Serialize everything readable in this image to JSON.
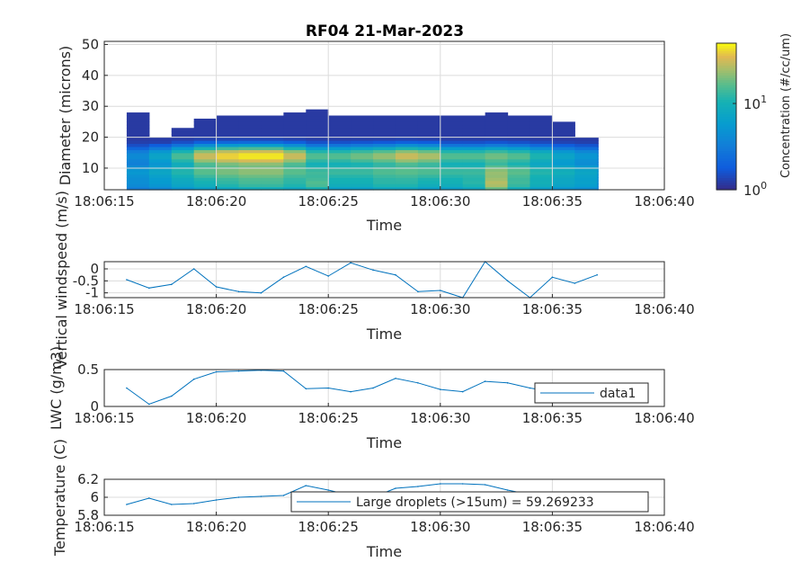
{
  "chart_data": [
    {
      "type": "heatmap",
      "title": "RF04 21-Mar-2023",
      "xlabel": "Time",
      "ylabel": "Diameter (microns)",
      "x_ticks": [
        "18:06:15",
        "18:06:20",
        "18:06:25",
        "18:06:30",
        "18:06:35",
        "18:06:40"
      ],
      "xlim_seconds": [
        15,
        40
      ],
      "ylim": [
        3,
        51
      ],
      "y_ticks": [
        10,
        20,
        30,
        40,
        50
      ],
      "grid": true,
      "colorbar": {
        "label": "Concentration (#/cc/um)",
        "scale": "log",
        "ticks": [
          "10^0",
          "10^1"
        ],
        "range": [
          1,
          50
        ],
        "colormap": "parula"
      },
      "x_seconds": [
        16,
        17,
        18,
        19,
        20,
        21,
        22,
        23,
        24,
        25,
        26,
        27,
        28,
        29,
        30,
        31,
        32,
        33,
        34,
        35,
        36,
        37
      ],
      "top_edge_microns": [
        28,
        20,
        23,
        26,
        26.5,
        27,
        27,
        27.5,
        28.5,
        27,
        26.5,
        26.5,
        26.5,
        26.5,
        26.5,
        27,
        28,
        27,
        27,
        25,
        20,
        20
      ],
      "bands": [
        {
          "y_center": 14,
          "peak_concentration_by_second": [
            3,
            6,
            14,
            30,
            40,
            45,
            45,
            30,
            15,
            15,
            18,
            22,
            30,
            25,
            15,
            15,
            18,
            15,
            10,
            6,
            4,
            3
          ]
        },
        {
          "y_center": 9,
          "peak_concentration_by_second": [
            4,
            6,
            10,
            15,
            18,
            20,
            20,
            15,
            12,
            12,
            12,
            14,
            15,
            14,
            12,
            12,
            20,
            15,
            10,
            8,
            6,
            4
          ]
        },
        {
          "y_center": 5,
          "peak_concentration_by_second": [
            3,
            4,
            6,
            8,
            10,
            12,
            12,
            10,
            14,
            8,
            8,
            10,
            10,
            8,
            8,
            10,
            25,
            12,
            8,
            6,
            5,
            3
          ]
        }
      ]
    },
    {
      "type": "line",
      "xlabel": "Time",
      "ylabel": "Vertical windspeed (m/s)",
      "x_ticks": [
        "18:06:15",
        "18:06:20",
        "18:06:25",
        "18:06:30",
        "18:06:35",
        "18:06:40"
      ],
      "xlim_seconds": [
        15,
        40
      ],
      "ylim": [
        -1.2,
        0.3
      ],
      "y_ticks": [
        "-1",
        "-0.5",
        "0"
      ],
      "y_tick_values": [
        -1,
        -0.5,
        0
      ],
      "grid": true,
      "series": [
        {
          "x_seconds": [
            16,
            17,
            18,
            19,
            20,
            21,
            22,
            23,
            24,
            25,
            26,
            27,
            28,
            29,
            30,
            31,
            32,
            33,
            34,
            35,
            36,
            37
          ],
          "values": [
            -0.45,
            -0.8,
            -0.65,
            0,
            -0.75,
            -0.95,
            -1.0,
            -0.35,
            0.1,
            -0.3,
            0.25,
            -0.05,
            -0.25,
            -0.95,
            -0.9,
            -1.2,
            0.3,
            -0.5,
            -1.2,
            -0.35,
            -0.6,
            -0.25
          ],
          "color": "#0072BD"
        }
      ]
    },
    {
      "type": "line",
      "xlabel": "Time",
      "ylabel": "LWC (g/m3)",
      "x_ticks": [
        "18:06:15",
        "18:06:20",
        "18:06:25",
        "18:06:30",
        "18:06:35",
        "18:06:40"
      ],
      "xlim_seconds": [
        15,
        40
      ],
      "ylim": [
        0,
        0.5
      ],
      "y_ticks": [
        "0",
        "0.5"
      ],
      "y_tick_values": [
        0,
        0.5
      ],
      "grid": true,
      "legend": {
        "labels": [
          "data1"
        ],
        "position": "bottom-right"
      },
      "series": [
        {
          "name": "data1",
          "x_seconds": [
            16,
            17,
            18,
            19,
            20,
            21,
            22,
            23,
            24,
            25,
            26,
            27,
            28,
            29,
            30,
            31,
            32,
            33,
            34,
            35,
            36,
            37
          ],
          "values": [
            0.25,
            0.03,
            0.14,
            0.37,
            0.47,
            0.48,
            0.49,
            0.48,
            0.24,
            0.25,
            0.2,
            0.25,
            0.38,
            0.32,
            0.23,
            0.2,
            0.34,
            0.32,
            0.25,
            0.2,
            0.2,
            0.22
          ],
          "color": "#0072BD"
        }
      ]
    },
    {
      "type": "line",
      "xlabel": "Time",
      "ylabel": "Temperature (C)",
      "x_ticks": [
        "18:06:15",
        "18:06:20",
        "18:06:25",
        "18:06:30",
        "18:06:35",
        "18:06:40"
      ],
      "xlim_seconds": [
        15,
        40
      ],
      "ylim": [
        5.8,
        6.2
      ],
      "y_ticks": [
        "5.8",
        "6",
        "6.2"
      ],
      "y_tick_values": [
        5.8,
        6,
        6.2
      ],
      "grid": true,
      "legend": {
        "labels": [
          "Large droplets (>15um) = 59.269233"
        ],
        "position": "bottom-right"
      },
      "series": [
        {
          "name": "Large droplets (>15um) = 59.269233",
          "x_seconds": [
            16,
            17,
            18,
            19,
            20,
            21,
            22,
            23,
            24,
            25,
            26,
            27,
            28,
            29,
            30,
            31,
            32,
            33,
            34,
            35,
            36,
            37
          ],
          "values": [
            5.92,
            5.99,
            5.92,
            5.93,
            5.97,
            6.0,
            6.01,
            6.02,
            6.13,
            6.08,
            6.02,
            6.0,
            6.1,
            6.12,
            6.15,
            6.15,
            6.14,
            6.08,
            6.03,
            6.05,
            6.04,
            6.04
          ],
          "color": "#0072BD"
        }
      ]
    }
  ]
}
